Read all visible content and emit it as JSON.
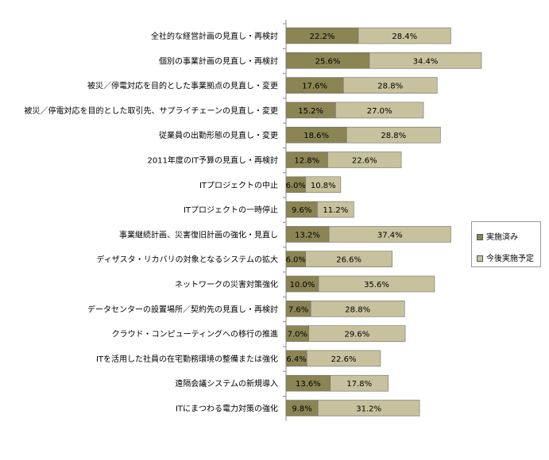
{
  "chart_data": {
    "type": "bar",
    "orientation": "horizontal",
    "stacked": true,
    "categories": [
      "全社的な経営計画の見直し・再検討",
      "個別の事業計画の見直し・再検討",
      "被災／停電対応を目的とした事業拠点の見直し・変更",
      "被災／停電対応を目的とした取引先、サプライチェーンの見直し・変更",
      "従業員の出勤形態の見直し・変更",
      "2011年度のIT予算の見直し・再検討",
      "ITプロジェクトの中止",
      "ITプロジェクトの一時停止",
      "事業継続計画、災害復旧計画の強化・見直し",
      "ディザスタ・リカバリの対象となるシステムの拡大",
      "ネットワークの災害対策強化",
      "データセンターの設置場所／契約先の見直し・再検討",
      "クラウド・コンピューティングへの移行の推進",
      "ITを活用した社員の在宅勤務環境の整備または強化",
      "遠隔会議システムの新規導入",
      "ITにまつわる電力対策の強化"
    ],
    "series": [
      {
        "name": "実施済み",
        "color": "#8b8453",
        "values": [
          22.2,
          25.6,
          17.6,
          15.2,
          18.6,
          12.8,
          6.0,
          9.6,
          13.2,
          6.0,
          10.0,
          7.6,
          7.0,
          6.4,
          13.6,
          9.8
        ],
        "labels": [
          "22.2%",
          "25.6%",
          "17.6%",
          "15.2%",
          "18.6%",
          "12.8%",
          "6.0%",
          "9.6%",
          "13.2%",
          "6.0%",
          "10.0%",
          "7.6%",
          "7.0%",
          "6.4%",
          "13.6%",
          "9.8%"
        ]
      },
      {
        "name": "今後実施予定",
        "color": "#c7c19d",
        "values": [
          28.4,
          34.4,
          28.8,
          27.0,
          28.8,
          22.6,
          10.8,
          11.2,
          37.4,
          26.6,
          35.6,
          28.8,
          29.6,
          22.6,
          17.8,
          31.2
        ],
        "labels": [
          "28.4%",
          "34.4%",
          "28.8%",
          "27.0%",
          "28.8%",
          "22.6%",
          "10.8%",
          "11.2%",
          "37.4%",
          "26.6%",
          "35.6%",
          "28.8%",
          "29.6%",
          "22.6%",
          "17.8%",
          "31.2%"
        ]
      }
    ],
    "legend_position": "right"
  }
}
